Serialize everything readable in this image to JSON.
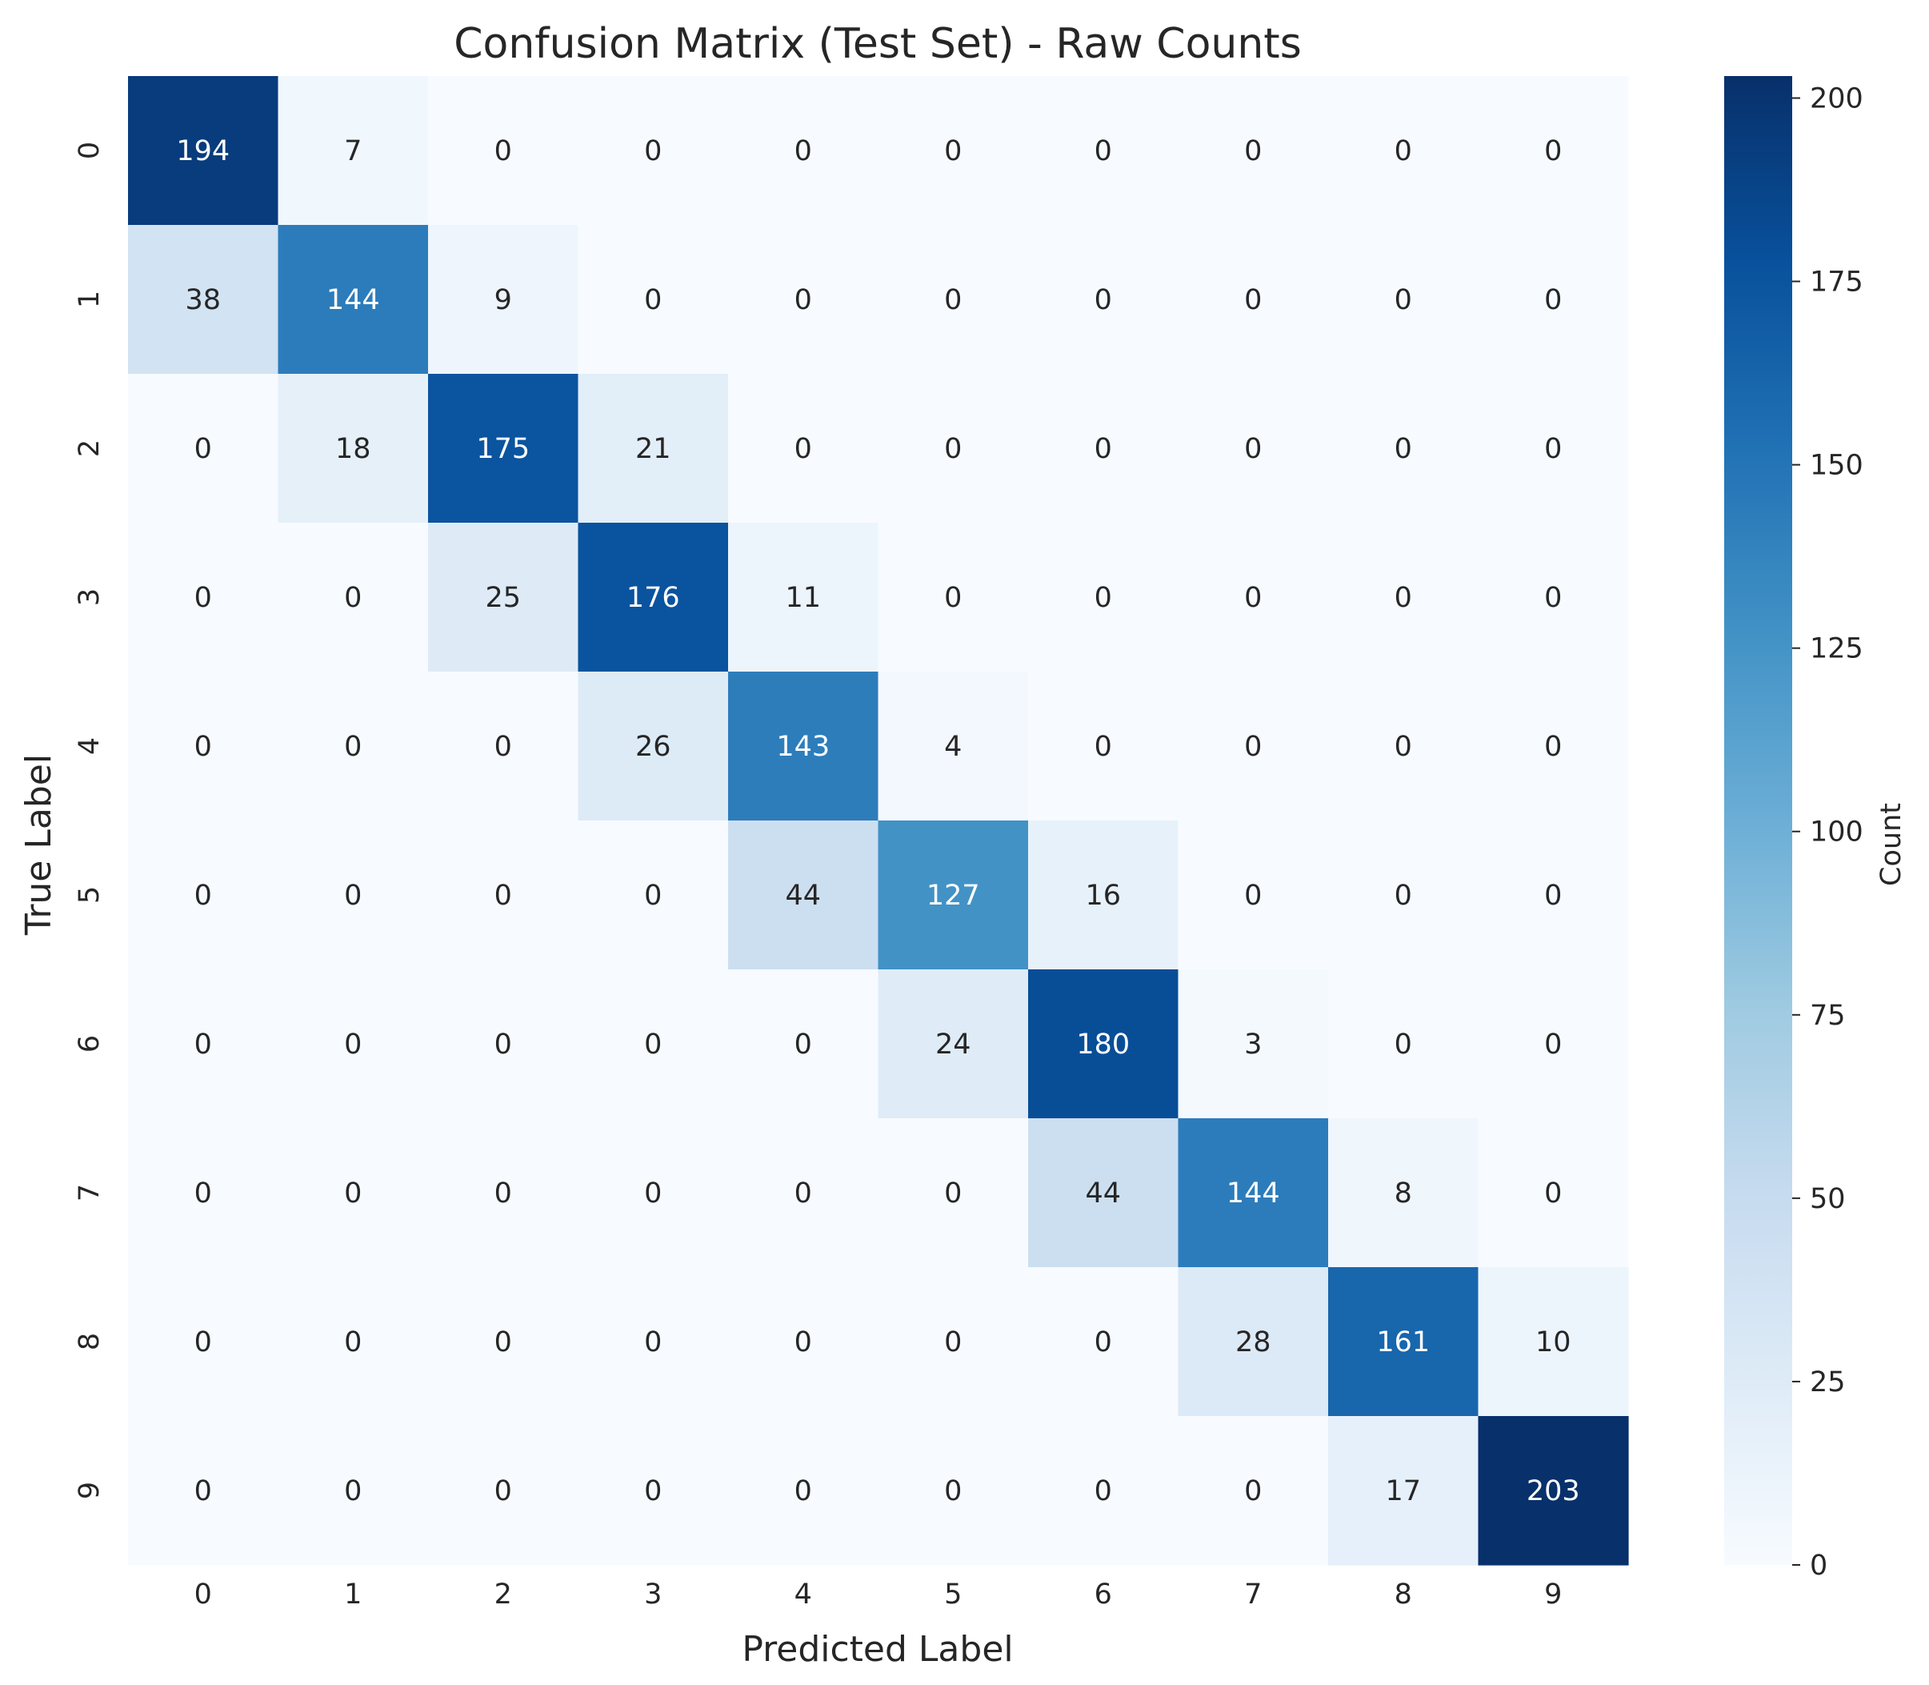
{
  "chart_data": {
    "type": "heatmap",
    "title": "Confusion Matrix (Test Set) - Raw Counts",
    "xlabel": "Predicted Label",
    "ylabel": "True Label",
    "x_categories": [
      "0",
      "1",
      "2",
      "3",
      "4",
      "5",
      "6",
      "7",
      "8",
      "9"
    ],
    "y_categories": [
      "0",
      "1",
      "2",
      "3",
      "4",
      "5",
      "6",
      "7",
      "8",
      "9"
    ],
    "values": [
      [
        194,
        7,
        0,
        0,
        0,
        0,
        0,
        0,
        0,
        0
      ],
      [
        38,
        144,
        9,
        0,
        0,
        0,
        0,
        0,
        0,
        0
      ],
      [
        0,
        18,
        175,
        21,
        0,
        0,
        0,
        0,
        0,
        0
      ],
      [
        0,
        0,
        25,
        176,
        11,
        0,
        0,
        0,
        0,
        0
      ],
      [
        0,
        0,
        0,
        26,
        143,
        4,
        0,
        0,
        0,
        0
      ],
      [
        0,
        0,
        0,
        0,
        44,
        127,
        16,
        0,
        0,
        0
      ],
      [
        0,
        0,
        0,
        0,
        0,
        24,
        180,
        3,
        0,
        0
      ],
      [
        0,
        0,
        0,
        0,
        0,
        0,
        44,
        144,
        8,
        0
      ],
      [
        0,
        0,
        0,
        0,
        0,
        0,
        0,
        28,
        161,
        10
      ],
      [
        0,
        0,
        0,
        0,
        0,
        0,
        0,
        0,
        17,
        203
      ]
    ],
    "colormap": "Blues",
    "colorbar": {
      "label": "Count",
      "range": [
        0,
        203
      ],
      "ticks": [
        0,
        25,
        50,
        75,
        100,
        125,
        150,
        175,
        200
      ]
    },
    "grid": false
  }
}
